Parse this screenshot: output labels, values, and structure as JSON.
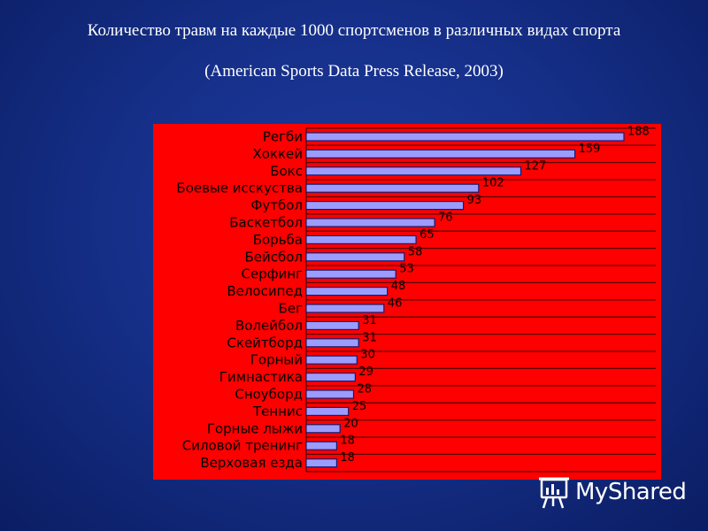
{
  "slide": {
    "title_line1": "Количество травм на каждые 1000 спортсменов в различных видах спорта",
    "title_line2": "(American Sports Data Press Release, 2003)"
  },
  "chart_data": {
    "type": "bar",
    "orientation": "horizontal",
    "categories": [
      "Регби",
      "Хоккей",
      "Бокс",
      "Боевые исскуства",
      "Футбол",
      "Баскетбол",
      "Борьба",
      "Бейсбол",
      "Серфинг",
      "Велосипед",
      "Бег",
      "Волейбол",
      "Скейтборд",
      "Горный",
      "Гимнастика",
      "Сноуборд",
      "Теннис",
      "Горные лыжи",
      "Силовой тренинг",
      "Верховая езда"
    ],
    "values": [
      188,
      159,
      127,
      102,
      93,
      76,
      65,
      58,
      53,
      48,
      46,
      31,
      31,
      30,
      29,
      28,
      25,
      20,
      18,
      18
    ],
    "data_labels": true,
    "xlim": [
      0,
      200
    ],
    "grid": true,
    "colors": {
      "plot_background": "#ff0000",
      "bar_fill": "#9c9cff",
      "bar_stroke": "#1a1a6a",
      "grid": "#5a0000"
    }
  },
  "watermark": {
    "text": "MyShared",
    "icon": "presentation-board-icon"
  }
}
